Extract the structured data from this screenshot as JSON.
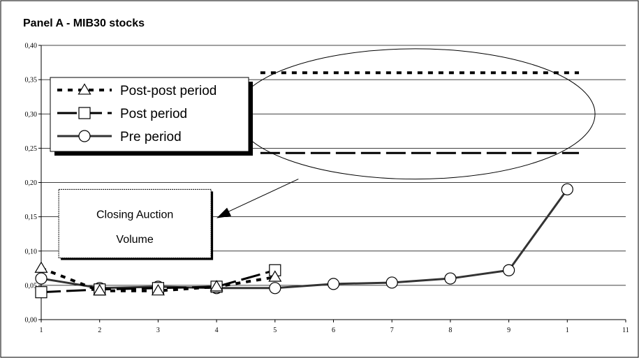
{
  "chart_data": {
    "type": "line",
    "title": "Panel A - MIB30 stocks",
    "xlabel": "",
    "ylabel": "",
    "x_ticks": [
      "1",
      "2",
      "3",
      "4",
      "5",
      "6",
      "7",
      "8",
      "9",
      "1",
      "11"
    ],
    "y_ticks": [
      "0,00",
      "0,05",
      "0,10",
      "0,15",
      "0,20",
      "0,25",
      "0,30",
      "0,35",
      "0,40"
    ],
    "ylim": [
      0,
      0.4
    ],
    "grid": "horizontal",
    "legend_position": "top-left",
    "series": [
      {
        "name": "Post-post period",
        "marker": "triangle",
        "line_style": "dotted",
        "x": [
          1,
          2,
          3,
          4,
          5
        ],
        "y": [
          0.075,
          0.042,
          0.042,
          0.048,
          0.062
        ]
      },
      {
        "name": "Post period",
        "marker": "square",
        "line_style": "dashed",
        "x": [
          1,
          2,
          3,
          4,
          5
        ],
        "y": [
          0.04,
          0.044,
          0.046,
          0.048,
          0.072
        ]
      },
      {
        "name": "Pre period",
        "marker": "circle",
        "line_style": "solid",
        "x": [
          1,
          2,
          3,
          4,
          5,
          6,
          7,
          8,
          9,
          10
        ],
        "y": [
          0.06,
          0.046,
          0.048,
          0.046,
          0.046,
          0.052,
          0.054,
          0.06,
          0.072,
          0.19
        ]
      }
    ],
    "annotation_lines": [
      {
        "series": "Post-post period",
        "value": 0.36,
        "line_style": "dotted"
      },
      {
        "series": "Post period",
        "value": 0.243,
        "line_style": "dashed"
      }
    ],
    "callout": {
      "text_line1": "Closing Auction",
      "text_line2": "Volume"
    }
  }
}
